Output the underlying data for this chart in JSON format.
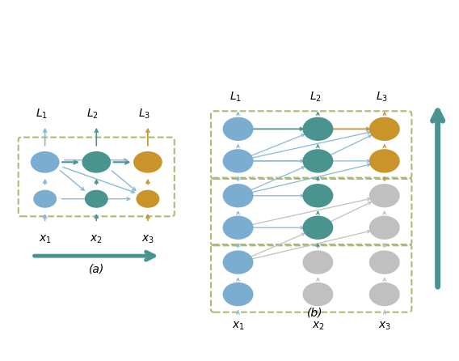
{
  "colors": {
    "blue": "#7BADD0",
    "teal": "#4A9490",
    "gold": "#C9952A",
    "gray": "#C0C0C0",
    "arrow_blue": "#88B8D8",
    "arrow_teal": "#4A9490",
    "arrow_gold": "#C9952A",
    "arrow_gray": "#C0C0C0",
    "dashed_box": "#AABB77",
    "big_arrow": "#4A9490"
  }
}
